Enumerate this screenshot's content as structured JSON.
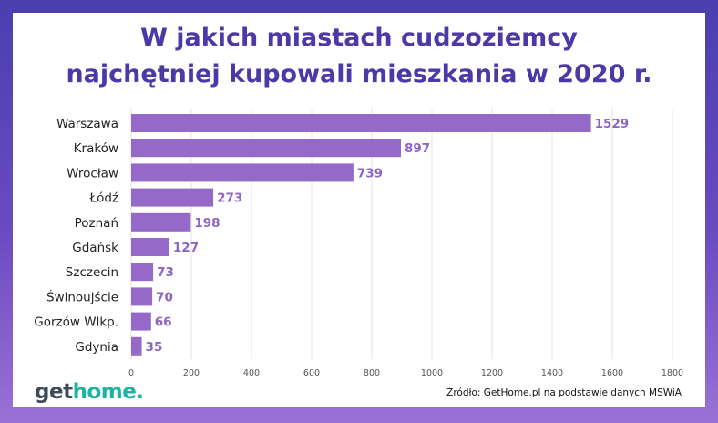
{
  "title": {
    "line1": "W jakich miastach cudzoziemcy",
    "line2": "najchętniej kupowali mieszkania w 2020 r."
  },
  "logo": {
    "part1": "get",
    "part2": "home."
  },
  "source": "Źródło: GetHome.pl na podstawie danych MSWiA",
  "colors": {
    "bar": "#9469c8",
    "value_label": "#8e65c2",
    "title": "#4a3aa8",
    "frame_top": "#4a3fb0",
    "frame_bottom": "#9a72d6",
    "logo_get": "#3d4a5a",
    "logo_home": "#1fb3a4"
  },
  "chart_data": {
    "type": "bar",
    "orientation": "horizontal",
    "categories": [
      "Warszawa",
      "Kraków",
      "Wrocław",
      "Łódź",
      "Poznań",
      "Gdańsk",
      "Szczecin",
      "Świnoujście",
      "Gorzów Wlkp.",
      "Gdynia"
    ],
    "values": [
      1529,
      897,
      739,
      273,
      198,
      127,
      73,
      70,
      66,
      35
    ],
    "xlim": [
      0,
      1800
    ],
    "xticks": [
      0,
      200,
      400,
      600,
      800,
      1000,
      1200,
      1400,
      1600,
      1800
    ],
    "grid": true,
    "legend": "none"
  }
}
